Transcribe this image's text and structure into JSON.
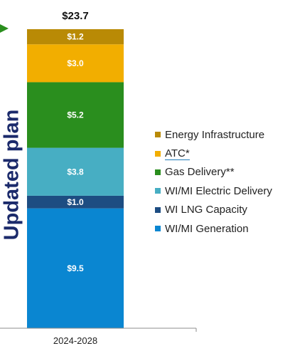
{
  "side_title": "Updated plan",
  "chart_data": {
    "type": "bar",
    "stacked": true,
    "categories": [
      "2024-2028"
    ],
    "total_label": "$23.7",
    "series": [
      {
        "name": "WI/MI Generation",
        "value": 9.5,
        "label": "$9.5",
        "color": "#0a86d1"
      },
      {
        "name": "WI LNG Capacity",
        "value": 1.0,
        "label": "$1.0",
        "color": "#1d4d82"
      },
      {
        "name": "WI/MI Electric Delivery",
        "value": 3.8,
        "label": "$3.8",
        "color": "#47aec3"
      },
      {
        "name": "Gas Delivery**",
        "value": 5.2,
        "label": "$5.2",
        "color": "#2a8e1e"
      },
      {
        "name": "ATC*",
        "value": 3.0,
        "label": "$3.0",
        "color": "#f2ae00"
      },
      {
        "name": "Energy Infrastructure",
        "value": 1.2,
        "label": "$1.2",
        "color": "#b98a05"
      }
    ],
    "legend": {
      "placement": "right",
      "order": [
        "Energy Infrastructure",
        "ATC*",
        "Gas Delivery**",
        "WI/MI Electric Delivery",
        "WI LNG Capacity",
        "WI/MI Generation"
      ]
    },
    "grid": false
  }
}
